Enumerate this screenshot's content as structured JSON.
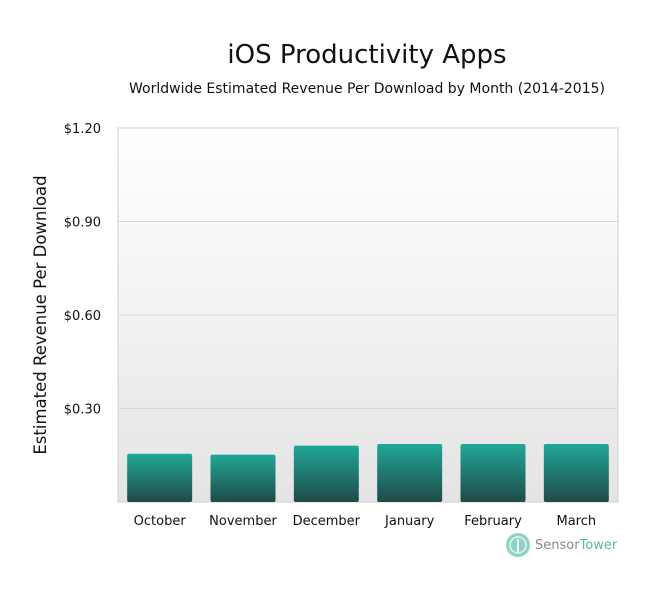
{
  "chart_data": {
    "type": "bar",
    "title": "iOS Productivity Apps",
    "subtitle": "Worldwide Estimated Revenue Per Download by Month (2014-2015)",
    "xlabel": "",
    "ylabel": "Estimated Revenue Per Download",
    "categories": [
      "October",
      "November",
      "December",
      "January",
      "February",
      "March"
    ],
    "values": [
      0.155,
      0.152,
      0.181,
      0.186,
      0.186,
      0.186
    ],
    "ylim": [
      0,
      1.2
    ],
    "yticks": [
      0.3,
      0.6,
      0.9,
      1.2
    ],
    "ytick_labels": [
      "$0.30",
      "$0.60",
      "$0.90",
      "$1.20"
    ],
    "grid": true,
    "colors": {
      "bar_top": "#20a898",
      "bar_bottom": "#1f4d4a",
      "plot_bg_top": "#ffffff",
      "plot_bg_bottom": "#e6e6e6",
      "grid": "#dcdcdc"
    }
  },
  "branding": {
    "word1": "Sensor",
    "word2": "Tower"
  }
}
